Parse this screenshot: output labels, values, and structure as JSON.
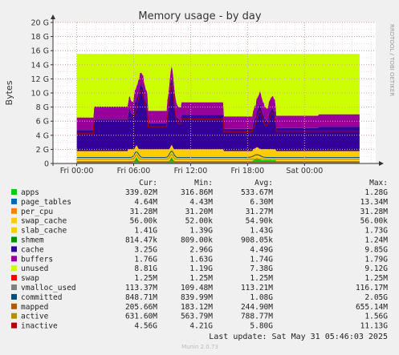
{
  "chart_data": {
    "type": "area",
    "title": "Memory usage - by day",
    "ylabel": "Bytes",
    "side_text": "RRDTOOL / TOBI OETIKER",
    "y_ticks": [
      "0",
      "2 G",
      "4 G",
      "6 G",
      "8 G",
      "10 G",
      "12 G",
      "14 G",
      "16 G",
      "18 G",
      "20 G"
    ],
    "y_tick_values": [
      0,
      2,
      4,
      6,
      8,
      10,
      12,
      14,
      16,
      18,
      20
    ],
    "ylim": [
      0,
      20
    ],
    "x_ticks": [
      "Fri 00:00",
      "Fri 06:00",
      "Fri 12:00",
      "Fri 18:00",
      "Sat 00:00"
    ],
    "x_tick_hours": [
      0,
      6,
      12,
      18,
      24
    ],
    "x_range_hours": [
      -2.5,
      31.5
    ],
    "data_end_hour": 29.8,
    "grid": true,
    "legend_placement": "bottom",
    "columns": [
      "Cur:",
      "Min:",
      "Avg:",
      "Max:"
    ],
    "series": [
      {
        "name": "apps",
        "color": "#00cc00",
        "cur": "339.02M",
        "min": "316.86M",
        "avg": "533.67M",
        "max": "1.28G"
      },
      {
        "name": "page_tables",
        "color": "#0066b3",
        "cur": "4.64M",
        "min": "4.43M",
        "avg": "6.30M",
        "max": "13.34M"
      },
      {
        "name": "per_cpu",
        "color": "#ff8000",
        "cur": "31.28M",
        "min": "31.20M",
        "avg": "31.27M",
        "max": "31.28M"
      },
      {
        "name": "swap_cache",
        "color": "#ffcc00",
        "cur": "56.00k",
        "min": "52.00k",
        "avg": "54.90k",
        "max": "56.00k"
      },
      {
        "name": "slab_cache",
        "color": "#ffcc00",
        "cur": "1.41G",
        "min": "1.39G",
        "avg": "1.43G",
        "max": "1.73G"
      },
      {
        "name": "shmem",
        "color": "#008f00",
        "cur": "814.47k",
        "min": "809.00k",
        "avg": "908.05k",
        "max": "1.24M"
      },
      {
        "name": "cache",
        "color": "#330099",
        "cur": "3.25G",
        "min": "2.96G",
        "avg": "4.49G",
        "max": "9.85G"
      },
      {
        "name": "buffers",
        "color": "#990099",
        "cur": "1.76G",
        "min": "1.63G",
        "avg": "1.74G",
        "max": "1.79G"
      },
      {
        "name": "unused",
        "color": "#ccff00",
        "cur": "8.81G",
        "min": "1.19G",
        "avg": "7.38G",
        "max": "9.12G"
      },
      {
        "name": "swap",
        "color": "#ff0000",
        "cur": "1.25M",
        "min": "1.25M",
        "avg": "1.25M",
        "max": "1.25M"
      },
      {
        "name": "vmalloc_used",
        "color": "#808080",
        "cur": "113.37M",
        "min": "109.48M",
        "avg": "113.21M",
        "max": "116.17M"
      },
      {
        "name": "committed",
        "color": "#004d80",
        "cur": "848.71M",
        "min": "839.99M",
        "avg": "1.08G",
        "max": "2.05G"
      },
      {
        "name": "mapped",
        "color": "#b35a00",
        "cur": "205.66M",
        "min": "183.12M",
        "avg": "244.90M",
        "max": "655.14M"
      },
      {
        "name": "active",
        "color": "#b38f00",
        "cur": "631.60M",
        "min": "563.79M",
        "avg": "788.77M",
        "max": "1.56G"
      },
      {
        "name": "inactive",
        "color": "#b30000",
        "cur": "4.56G",
        "min": "4.21G",
        "avg": "5.80G",
        "max": "11.13G"
      }
    ],
    "last_update": "Last update: Sat May 31 05:46:03 2025",
    "footer": "Munin 2.0.73"
  }
}
